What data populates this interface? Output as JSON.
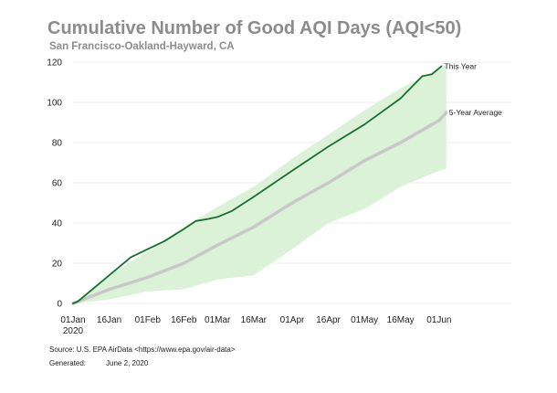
{
  "title": "Cumulative Number of Good AQI Days (AQI<50)",
  "subtitle": "San Francisco-Oakland-Hayward, CA",
  "source_text": "Source: U.S. EPA AirData <https://www.epa.gov/air-data>",
  "generated_label": "Generated:",
  "generated_date": "June 2, 2020",
  "colors": {
    "this_year": "#1a6e30",
    "average": "#c8c8c8",
    "band": "#dcf2d8",
    "title": "#8c8c8c"
  },
  "chart_data": {
    "type": "line",
    "title": "Cumulative Number of Good AQI Days (AQI<50)",
    "subtitle": "San Francisco-Oakland-Hayward, CA",
    "x_type": "date",
    "xlim": [
      "2020-01-01",
      "2020-07-01"
    ],
    "ylim": [
      0,
      120
    ],
    "yticks": [
      0,
      20,
      40,
      60,
      80,
      100,
      120
    ],
    "grid": true,
    "xticks": [
      {
        "date": "2020-01-01",
        "label": "01Jan",
        "sublabel": "2020"
      },
      {
        "date": "2020-01-16",
        "label": "16Jan"
      },
      {
        "date": "2020-02-01",
        "label": "01Feb"
      },
      {
        "date": "2020-02-16",
        "label": "16Feb"
      },
      {
        "date": "2020-03-01",
        "label": "01Mar"
      },
      {
        "date": "2020-03-16",
        "label": "16Mar"
      },
      {
        "date": "2020-04-01",
        "label": "01Apr"
      },
      {
        "date": "2020-04-16",
        "label": "16Apr"
      },
      {
        "date": "2020-05-01",
        "label": "01May"
      },
      {
        "date": "2020-05-16",
        "label": "16May"
      },
      {
        "date": "2020-06-01",
        "label": "01Jun"
      }
    ],
    "series": [
      {
        "name": "This Year",
        "role": "line",
        "points": [
          [
            "2020-01-01",
            0
          ],
          [
            "2020-01-03",
            1
          ],
          [
            "2020-01-08",
            6
          ],
          [
            "2020-01-16",
            14
          ],
          [
            "2020-01-25",
            23
          ],
          [
            "2020-02-01",
            27
          ],
          [
            "2020-02-08",
            31
          ],
          [
            "2020-02-16",
            37
          ],
          [
            "2020-02-21",
            41
          ],
          [
            "2020-02-26",
            42
          ],
          [
            "2020-03-01",
            43
          ],
          [
            "2020-03-07",
            46
          ],
          [
            "2020-03-16",
            53
          ],
          [
            "2020-04-01",
            66
          ],
          [
            "2020-04-16",
            78
          ],
          [
            "2020-05-01",
            89
          ],
          [
            "2020-05-16",
            102
          ],
          [
            "2020-05-25",
            113
          ],
          [
            "2020-05-29",
            114
          ],
          [
            "2020-06-02",
            118
          ]
        ]
      },
      {
        "name": "5-Year Average",
        "role": "line",
        "points": [
          [
            "2020-01-01",
            0
          ],
          [
            "2020-01-16",
            7
          ],
          [
            "2020-02-01",
            13
          ],
          [
            "2020-02-16",
            20
          ],
          [
            "2020-03-01",
            29
          ],
          [
            "2020-03-16",
            38
          ],
          [
            "2020-04-01",
            50
          ],
          [
            "2020-04-16",
            60
          ],
          [
            "2020-05-01",
            71
          ],
          [
            "2020-05-16",
            80
          ],
          [
            "2020-06-01",
            91
          ],
          [
            "2020-06-04",
            95
          ]
        ]
      }
    ],
    "band": {
      "upper": [
        [
          "2020-01-01",
          0
        ],
        [
          "2020-01-16",
          14
        ],
        [
          "2020-02-01",
          26
        ],
        [
          "2020-02-16",
          38
        ],
        [
          "2020-03-01",
          48
        ],
        [
          "2020-03-16",
          58
        ],
        [
          "2020-04-01",
          72
        ],
        [
          "2020-04-16",
          84
        ],
        [
          "2020-05-01",
          96
        ],
        [
          "2020-05-16",
          107
        ],
        [
          "2020-06-01",
          117
        ],
        [
          "2020-06-04",
          118
        ]
      ],
      "lower": [
        [
          "2020-01-01",
          0
        ],
        [
          "2020-01-16",
          2
        ],
        [
          "2020-02-01",
          6
        ],
        [
          "2020-02-16",
          7
        ],
        [
          "2020-03-01",
          12
        ],
        [
          "2020-03-16",
          14
        ],
        [
          "2020-04-01",
          27
        ],
        [
          "2020-04-16",
          40
        ],
        [
          "2020-05-01",
          47
        ],
        [
          "2020-05-16",
          58
        ],
        [
          "2020-06-01",
          66
        ],
        [
          "2020-06-04",
          67
        ]
      ]
    },
    "annotations": [
      {
        "text": "This Year",
        "series": "This Year"
      },
      {
        "text": "5-Year Average",
        "series": "5-Year Average"
      }
    ]
  }
}
